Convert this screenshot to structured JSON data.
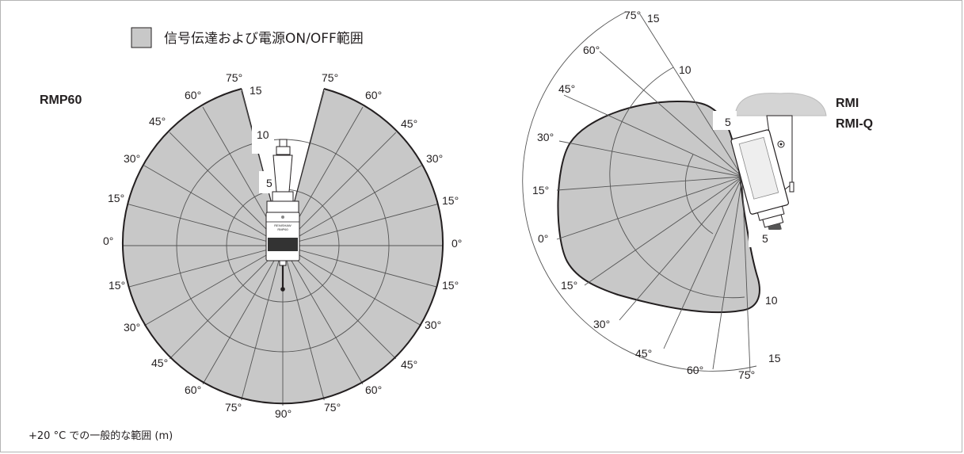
{
  "legend": {
    "label": "信号伝達および電源ON/OFF範囲",
    "swatch_color": "#c8c8c8"
  },
  "footnote": "+20 °C での一般的な範囲 (m)",
  "rmp60": {
    "title": "RMP60",
    "angles_top_left": [
      "75°",
      "60°",
      "45°",
      "30°",
      "15°",
      "0°"
    ],
    "angles_top_right": [
      "75°",
      "60°",
      "45°",
      "30°",
      "15°",
      "0°"
    ],
    "angles_bottom_left": [
      "15°",
      "30°",
      "45°",
      "60°",
      "75°"
    ],
    "angle_bottom_center": "90°",
    "angles_bottom_right": [
      "15°",
      "30°",
      "45°",
      "60°",
      "75°"
    ],
    "range_labels": [
      "15",
      "10",
      "5"
    ],
    "probe_brand": "RENISHAW",
    "probe_model": "RMP60"
  },
  "rmi": {
    "title_line1": "RMI",
    "title_line2": "RMI-Q",
    "angles_upper": [
      "75°",
      "60°",
      "45°",
      "30°",
      "15°",
      "0°"
    ],
    "angles_lower": [
      "15°",
      "30°",
      "45°",
      "60°",
      "75°"
    ],
    "range_labels_upper": [
      "15",
      "10",
      "5"
    ],
    "range_labels_lower": [
      "5",
      "10",
      "15"
    ]
  },
  "colors": {
    "fill": "#c8c8c8",
    "line": "#231f20",
    "gridline": "#555555",
    "frame": "#b4b4b4"
  }
}
